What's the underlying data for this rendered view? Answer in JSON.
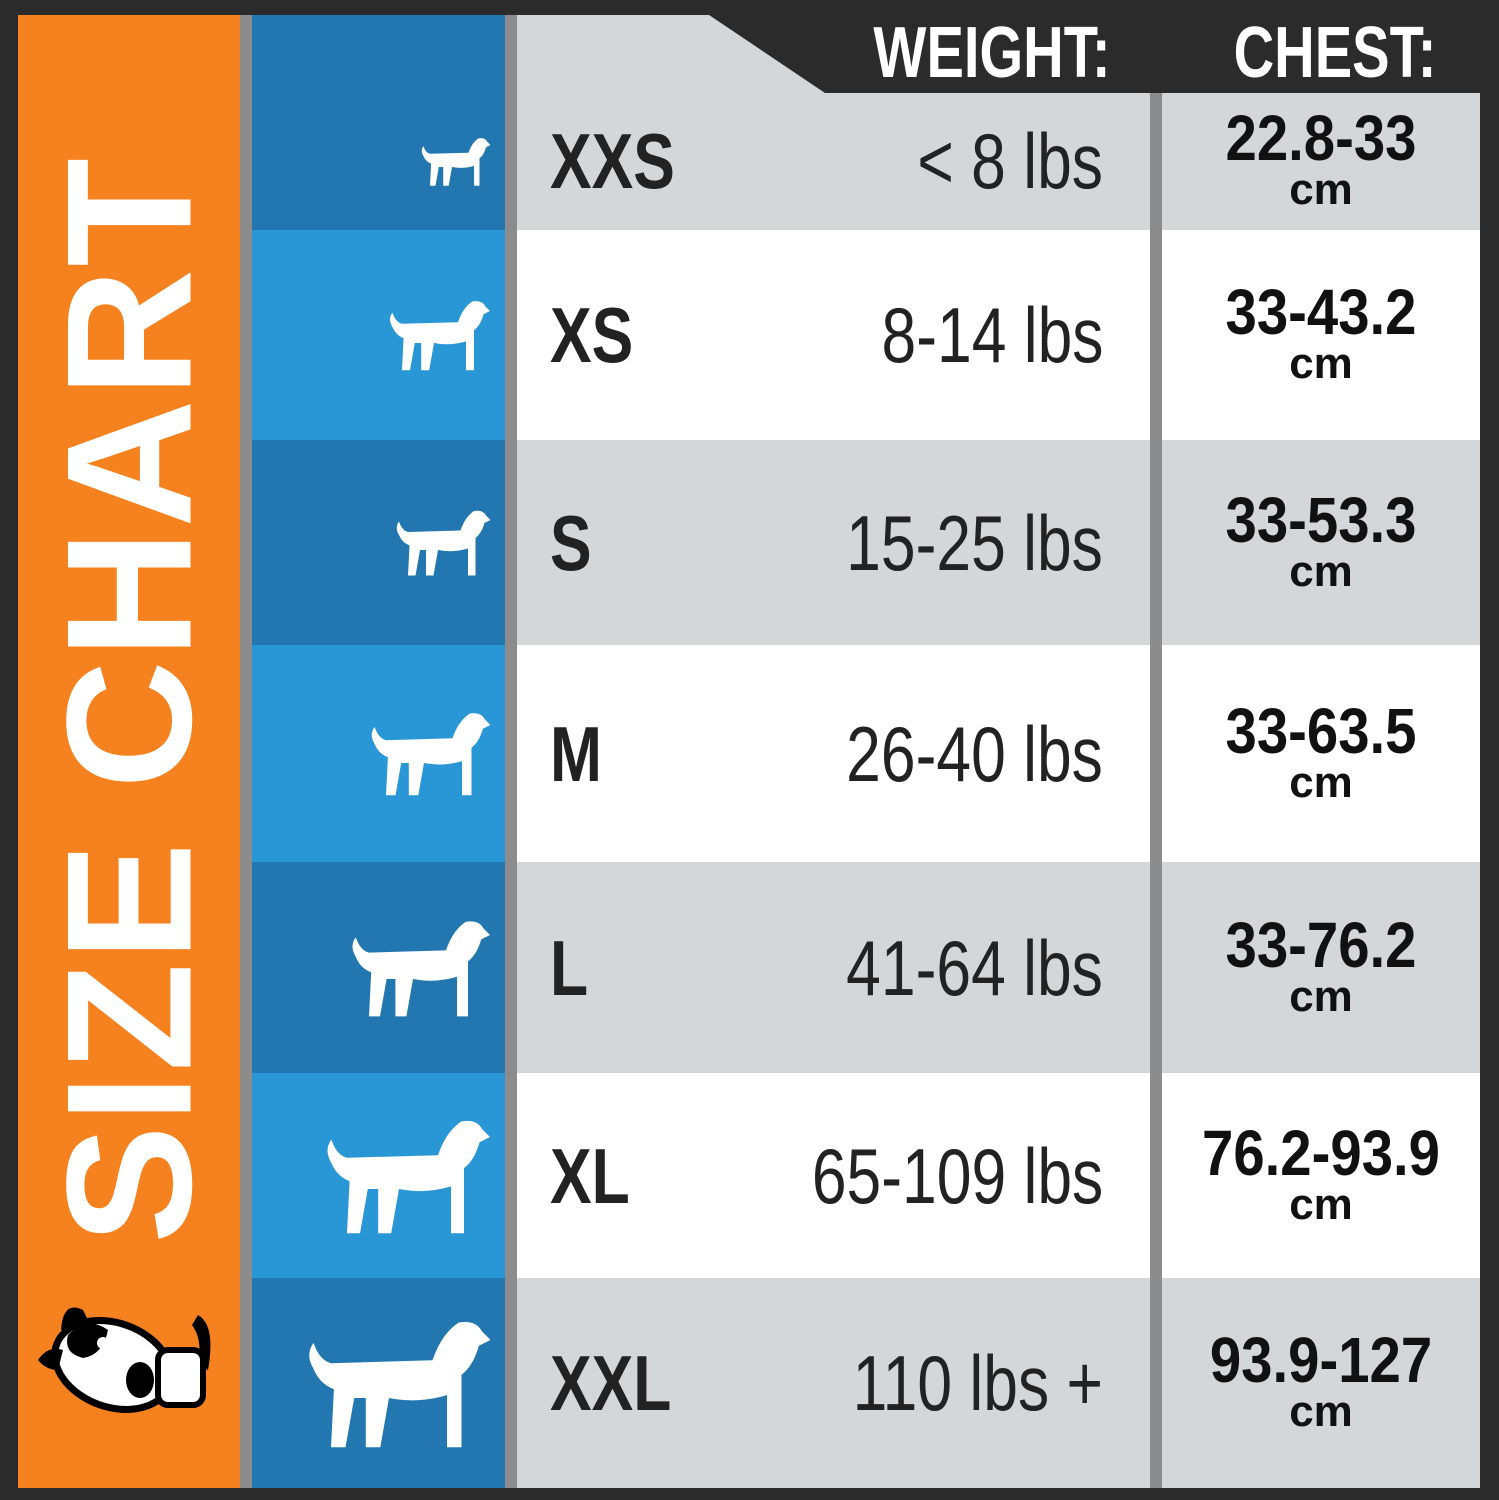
{
  "title": "SIZE CHART",
  "headers": {
    "weight": "WEIGHT:",
    "chest": "CHEST:"
  },
  "colors": {
    "orange": "#f5821f",
    "blue_dark": "#2277b0",
    "blue_light": "#2996d6",
    "row_gray": "#d5d6d8",
    "row_white": "#ffffff",
    "frame": "#2b2b2b"
  },
  "logo_icon": "cartoon-dog-logo",
  "rows": [
    {
      "size": "XXS",
      "weight": "< 8 lbs",
      "chest": "22.8-33",
      "unit": "cm",
      "icon": "chihuahua-silhouette-icon"
    },
    {
      "size": "XS",
      "weight": "8-14 lbs",
      "chest": "33-43.2",
      "unit": "cm",
      "icon": "dachshund-silhouette-icon"
    },
    {
      "size": "S",
      "weight": "15-25 lbs",
      "chest": "33-53.3",
      "unit": "cm",
      "icon": "pug-silhouette-icon"
    },
    {
      "size": "M",
      "weight": "26-40 lbs",
      "chest": "33-63.5",
      "unit": "cm",
      "icon": "schnauzer-silhouette-icon"
    },
    {
      "size": "L",
      "weight": "41-64 lbs",
      "chest": "33-76.2",
      "unit": "cm",
      "icon": "spaniel-silhouette-icon"
    },
    {
      "size": "XL",
      "weight": "65-109 lbs",
      "chest": "76.2-93.9",
      "unit": "cm",
      "icon": "shepherd-silhouette-icon"
    },
    {
      "size": "XXL",
      "weight": "110 lbs +",
      "chest": "93.9-127",
      "unit": "cm",
      "icon": "mastiff-silhouette-icon"
    }
  ]
}
